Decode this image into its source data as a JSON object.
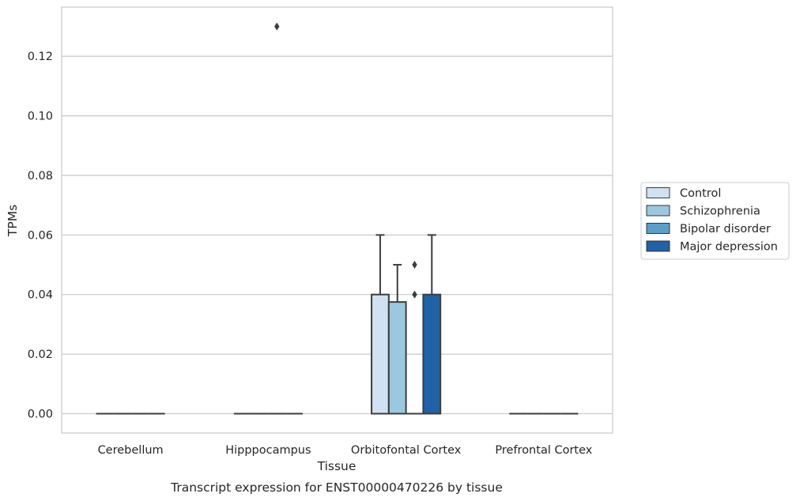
{
  "chart_data": {
    "type": "box",
    "xlabel": "Tissue",
    "ylabel": "TPMs",
    "caption": "Transcript expression for ENST00000470226 by tissue",
    "categories": [
      "Cerebellum",
      "Hipppocampus",
      "Orbitofontal Cortex",
      "Prefrontal Cortex"
    ],
    "ylim": [
      -0.0065,
      0.1365
    ],
    "yticks": [
      0.0,
      0.02,
      0.04,
      0.06,
      0.08,
      0.1,
      0.12
    ],
    "ytick_labels": [
      "0.00",
      "0.02",
      "0.04",
      "0.06",
      "0.08",
      "0.10",
      "0.12"
    ],
    "grid": true,
    "legend_position": "right",
    "series": [
      {
        "name": "Control",
        "color": "#d0e1f2",
        "boxes": [
          {
            "q1": 0,
            "median": 0,
            "q3": 0,
            "whisker_low": 0,
            "whisker_high": 0,
            "outliers": []
          },
          {
            "q1": 0,
            "median": 0,
            "q3": 0,
            "whisker_low": 0,
            "whisker_high": 0,
            "outliers": []
          },
          {
            "q1": 0,
            "median": 0,
            "q3": 0.04,
            "whisker_low": 0,
            "whisker_high": 0.06,
            "outliers": []
          },
          {
            "q1": 0,
            "median": 0,
            "q3": 0,
            "whisker_low": 0,
            "whisker_high": 0,
            "outliers": []
          }
        ]
      },
      {
        "name": "Schizophrenia",
        "color": "#9ac8e0",
        "boxes": [
          {
            "q1": 0,
            "median": 0,
            "q3": 0,
            "whisker_low": 0,
            "whisker_high": 0,
            "outliers": []
          },
          {
            "q1": 0,
            "median": 0,
            "q3": 0,
            "whisker_low": 0,
            "whisker_high": 0,
            "outliers": []
          },
          {
            "q1": 0,
            "median": 0,
            "q3": 0.0375,
            "whisker_low": 0,
            "whisker_high": 0.05,
            "outliers": []
          },
          {
            "q1": 0,
            "median": 0,
            "q3": 0,
            "whisker_low": 0,
            "whisker_high": 0,
            "outliers": []
          }
        ]
      },
      {
        "name": "Bipolar disorder",
        "color": "#5a9ec9",
        "boxes": [
          {
            "q1": 0,
            "median": 0,
            "q3": 0,
            "whisker_low": 0,
            "whisker_high": 0,
            "outliers": []
          },
          {
            "q1": 0,
            "median": 0,
            "q3": 0,
            "whisker_low": 0,
            "whisker_high": 0,
            "outliers": [
              0.13
            ]
          },
          {
            "q1": 0,
            "median": 0,
            "q3": 0,
            "whisker_low": 0,
            "whisker_high": 0,
            "outliers": [
              0.04,
              0.05
            ]
          },
          {
            "q1": 0,
            "median": 0,
            "q3": 0,
            "whisker_low": 0,
            "whisker_high": 0,
            "outliers": []
          }
        ]
      },
      {
        "name": "Major depression",
        "color": "#2161a6",
        "boxes": [
          {
            "q1": 0,
            "median": 0,
            "q3": 0,
            "whisker_low": 0,
            "whisker_high": 0,
            "outliers": []
          },
          {
            "q1": 0,
            "median": 0,
            "q3": 0,
            "whisker_low": 0,
            "whisker_high": 0,
            "outliers": []
          },
          {
            "q1": 0,
            "median": 0,
            "q3": 0.04,
            "whisker_low": 0,
            "whisker_high": 0.06,
            "outliers": []
          },
          {
            "q1": 0,
            "median": 0,
            "q3": 0,
            "whisker_low": 0,
            "whisker_high": 0,
            "outliers": []
          }
        ]
      }
    ]
  }
}
